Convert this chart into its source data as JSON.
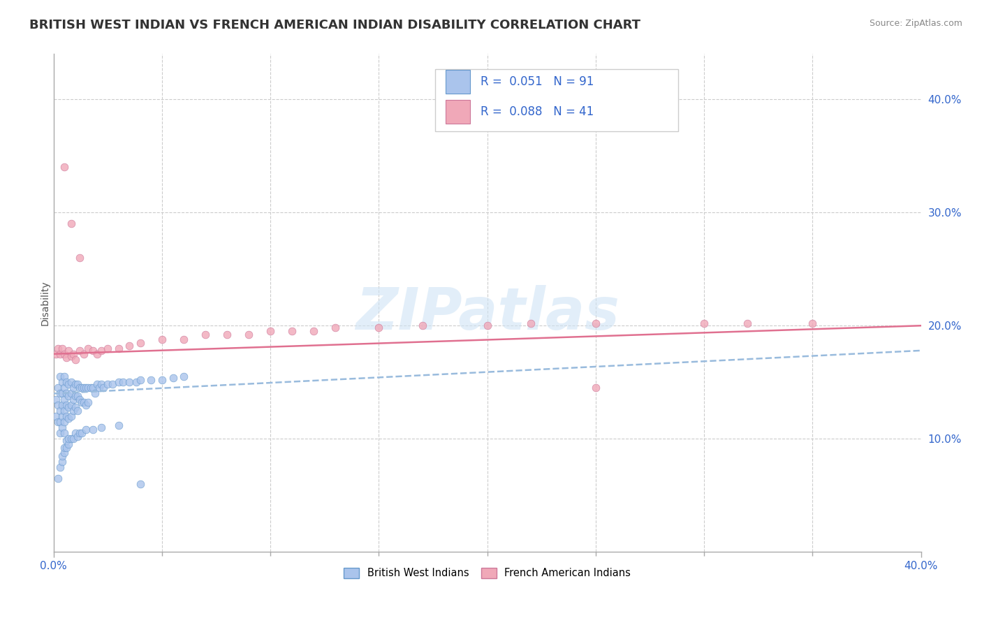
{
  "title": "BRITISH WEST INDIAN VS FRENCH AMERICAN INDIAN DISABILITY CORRELATION CHART",
  "source": "Source: ZipAtlas.com",
  "ylabel": "Disability",
  "xlim": [
    0.0,
    0.4
  ],
  "ylim": [
    0.0,
    0.44
  ],
  "series1_name": "British West Indians",
  "series2_name": "French American Indians",
  "series1_color": "#aac4ec",
  "series2_color": "#f0a8b8",
  "series1_edge_color": "#6699cc",
  "series2_edge_color": "#cc7799",
  "series1_line_color": "#99bbdd",
  "series2_line_color": "#e07090",
  "R1": 0.051,
  "N1": 91,
  "R2": 0.088,
  "N2": 41,
  "legend_label_color": "#3366cc",
  "watermark": "ZIPatlas",
  "background_color": "#ffffff",
  "grid_color": "#cccccc",
  "title_fontsize": 13,
  "axis_label_fontsize": 10,
  "tick_fontsize": 11,
  "series1_x": [
    0.001,
    0.001,
    0.002,
    0.002,
    0.002,
    0.003,
    0.003,
    0.003,
    0.003,
    0.003,
    0.004,
    0.004,
    0.004,
    0.004,
    0.004,
    0.005,
    0.005,
    0.005,
    0.005,
    0.005,
    0.005,
    0.006,
    0.006,
    0.006,
    0.006,
    0.007,
    0.007,
    0.007,
    0.007,
    0.008,
    0.008,
    0.008,
    0.008,
    0.009,
    0.009,
    0.009,
    0.01,
    0.01,
    0.01,
    0.011,
    0.011,
    0.011,
    0.012,
    0.012,
    0.013,
    0.013,
    0.014,
    0.014,
    0.015,
    0.015,
    0.016,
    0.016,
    0.017,
    0.018,
    0.019,
    0.02,
    0.021,
    0.022,
    0.023,
    0.025,
    0.027,
    0.03,
    0.032,
    0.035,
    0.038,
    0.04,
    0.045,
    0.05,
    0.055,
    0.06,
    0.002,
    0.003,
    0.004,
    0.004,
    0.005,
    0.005,
    0.006,
    0.006,
    0.007,
    0.007,
    0.008,
    0.009,
    0.01,
    0.011,
    0.012,
    0.013,
    0.015,
    0.018,
    0.022,
    0.03,
    0.04
  ],
  "series1_y": [
    0.135,
    0.12,
    0.145,
    0.13,
    0.115,
    0.155,
    0.14,
    0.125,
    0.115,
    0.105,
    0.15,
    0.14,
    0.13,
    0.12,
    0.11,
    0.155,
    0.145,
    0.135,
    0.125,
    0.115,
    0.105,
    0.15,
    0.14,
    0.13,
    0.12,
    0.148,
    0.138,
    0.128,
    0.118,
    0.15,
    0.14,
    0.13,
    0.12,
    0.145,
    0.135,
    0.125,
    0.148,
    0.138,
    0.128,
    0.148,
    0.138,
    0.125,
    0.145,
    0.135,
    0.145,
    0.132,
    0.145,
    0.132,
    0.145,
    0.13,
    0.145,
    0.132,
    0.145,
    0.145,
    0.14,
    0.148,
    0.145,
    0.148,
    0.145,
    0.148,
    0.148,
    0.15,
    0.15,
    0.15,
    0.15,
    0.152,
    0.152,
    0.152,
    0.154,
    0.155,
    0.065,
    0.075,
    0.08,
    0.085,
    0.088,
    0.092,
    0.092,
    0.098,
    0.095,
    0.1,
    0.1,
    0.1,
    0.105,
    0.102,
    0.105,
    0.105,
    0.108,
    0.108,
    0.11,
    0.112,
    0.06
  ],
  "series2_x": [
    0.001,
    0.002,
    0.003,
    0.004,
    0.005,
    0.006,
    0.007,
    0.008,
    0.009,
    0.01,
    0.012,
    0.014,
    0.016,
    0.018,
    0.02,
    0.022,
    0.025,
    0.03,
    0.035,
    0.04,
    0.05,
    0.06,
    0.07,
    0.08,
    0.09,
    0.1,
    0.11,
    0.12,
    0.13,
    0.15,
    0.17,
    0.2,
    0.22,
    0.25,
    0.3,
    0.32,
    0.35,
    0.005,
    0.008,
    0.012,
    0.25
  ],
  "series2_y": [
    0.175,
    0.18,
    0.175,
    0.18,
    0.175,
    0.172,
    0.178,
    0.173,
    0.175,
    0.17,
    0.178,
    0.175,
    0.18,
    0.178,
    0.175,
    0.178,
    0.18,
    0.18,
    0.182,
    0.185,
    0.188,
    0.188,
    0.192,
    0.192,
    0.192,
    0.195,
    0.195,
    0.195,
    0.198,
    0.198,
    0.2,
    0.2,
    0.202,
    0.202,
    0.202,
    0.202,
    0.202,
    0.34,
    0.29,
    0.26,
    0.145
  ],
  "pink_line_x0": 0.0,
  "pink_line_y0": 0.175,
  "pink_line_x1": 0.4,
  "pink_line_y1": 0.2,
  "blue_line_x0": 0.0,
  "blue_line_y0": 0.14,
  "blue_line_x1": 0.4,
  "blue_line_y1": 0.178
}
